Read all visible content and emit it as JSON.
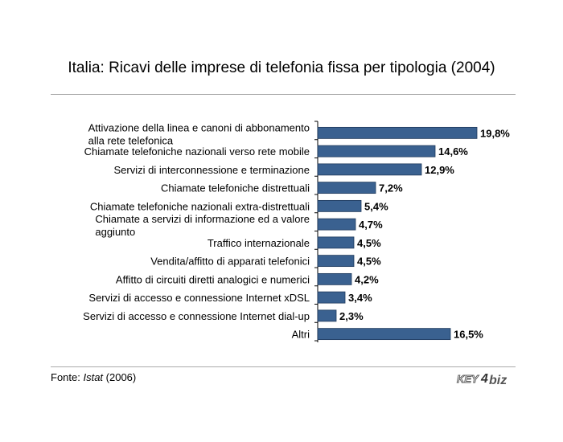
{
  "chart_data": {
    "type": "bar",
    "orientation": "horizontal",
    "title": "Italia: Ricavi delle imprese di telefonia fissa per tipologia (2004)",
    "categories": [
      [
        "Attivazione della linea e canoni di abbonamento",
        "alla rete telefonica"
      ],
      [
        "Chiamate telefoniche nazionali verso rete mobile"
      ],
      [
        "Servizi di interconnessione e terminazione"
      ],
      [
        "Chiamate telefoniche distrettuali"
      ],
      [
        "Chiamate telefoniche nazionali extra-distrettuali"
      ],
      [
        "Chiamate a servizi di informazione ed a valore",
        "aggiunto"
      ],
      [
        "Traffico internazionale"
      ],
      [
        "Vendita/affitto di apparati telefonici"
      ],
      [
        "Affitto di circuiti diretti analogici e numerici"
      ],
      [
        "Servizi di accesso e connessione Internet xDSL"
      ],
      [
        "Servizi di accesso e connessione Internet dial-up"
      ],
      [
        "Altri"
      ]
    ],
    "values": [
      19.8,
      14.6,
      12.9,
      7.2,
      5.4,
      4.7,
      4.5,
      4.5,
      4.2,
      3.4,
      2.3,
      16.5
    ],
    "value_labels": [
      "19,8%",
      "14,6%",
      "12,9%",
      "7,2%",
      "5,4%",
      "4,7%",
      "4,5%",
      "4,5%",
      "4,2%",
      "3,4%",
      "2,3%",
      "16,5%"
    ],
    "xlim": [
      0,
      20
    ],
    "bar_color": "#3a6190",
    "bar_border_color": "#1f3a5c",
    "grid": false,
    "legend": "none"
  },
  "footer": {
    "source_label": "Fonte: ",
    "source_name": "Istat",
    "source_year": " (2006)"
  },
  "logo": {
    "text_left": "KEY",
    "text_mid": "4",
    "text_right": "biz"
  }
}
